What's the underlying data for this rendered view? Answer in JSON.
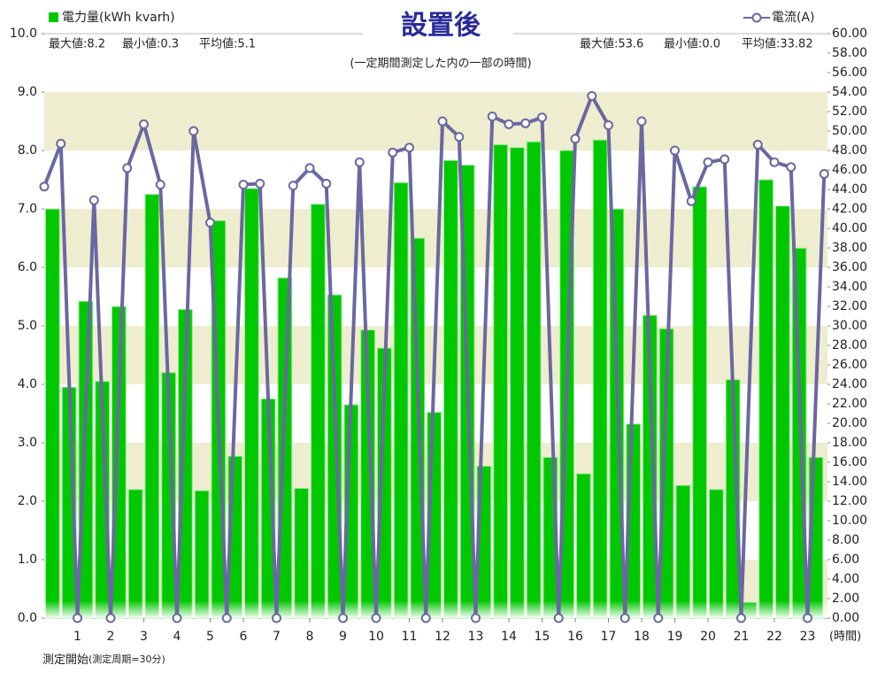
{
  "chart_data": {
    "type": "combo",
    "title": "設置後",
    "subtitle": "(一定期間測定した内の一部の時間)",
    "xlabel": "(時間)",
    "footnote": "測定開始",
    "footnote_small": "(測定周期=30分)",
    "stats_left": [
      "最大値:8.2",
      "最小値:0.3",
      "平均値:5.1"
    ],
    "stats_right": [
      "最大値:53.6",
      "最小値:0.0",
      "平均値:33.82"
    ],
    "xlim": [
      0,
      23.6
    ],
    "xticks": [
      1,
      2,
      3,
      4,
      5,
      6,
      7,
      8,
      9,
      10,
      11,
      12,
      13,
      14,
      15,
      16,
      17,
      18,
      19,
      20,
      21,
      22,
      23
    ],
    "ylim": [
      0,
      10
    ],
    "yticks": [
      {
        "value": 0,
        "label": "0.0"
      },
      {
        "value": 1,
        "label": "1.0"
      },
      {
        "value": 2,
        "label": "2.0"
      },
      {
        "value": 3,
        "label": "3.0"
      },
      {
        "value": 4,
        "label": "4.0"
      },
      {
        "value": 5,
        "label": "5.0"
      },
      {
        "value": 6,
        "label": "6.0"
      },
      {
        "value": 7,
        "label": "7.0"
      },
      {
        "value": 8,
        "label": "8.0"
      },
      {
        "value": 9,
        "label": "9.0"
      },
      {
        "value": 10,
        "label": "10.0"
      }
    ],
    "y2lim": [
      0,
      60
    ],
    "y2ticks": [
      {
        "value": 0,
        "label": "0.00"
      },
      {
        "value": 2,
        "label": "2.00"
      },
      {
        "value": 4,
        "label": "4.00"
      },
      {
        "value": 6,
        "label": "6.00"
      },
      {
        "value": 8,
        "label": "8.00"
      },
      {
        "value": 10,
        "label": "10.00"
      },
      {
        "value": 12,
        "label": "12.00"
      },
      {
        "value": 14,
        "label": "14.00"
      },
      {
        "value": 16,
        "label": "16.00"
      },
      {
        "value": 18,
        "label": "18.00"
      },
      {
        "value": 20,
        "label": "20.00"
      },
      {
        "value": 22,
        "label": "22.00"
      },
      {
        "value": 24,
        "label": "24.00"
      },
      {
        "value": 26,
        "label": "26.00"
      },
      {
        "value": 28,
        "label": "28.00"
      },
      {
        "value": 30,
        "label": "30.00"
      },
      {
        "value": 32,
        "label": "32.00"
      },
      {
        "value": 34,
        "label": "34.00"
      },
      {
        "value": 36,
        "label": "36.00"
      },
      {
        "value": 38,
        "label": "38.00"
      },
      {
        "value": 40,
        "label": "40.00"
      },
      {
        "value": 42,
        "label": "42.00"
      },
      {
        "value": 44,
        "label": "44.00"
      },
      {
        "value": 46,
        "label": "46.00"
      },
      {
        "value": 48,
        "label": "48.00"
      },
      {
        "value": 50,
        "label": "50.00"
      },
      {
        "value": 52,
        "label": "52.00"
      },
      {
        "value": 54,
        "label": "54.00"
      },
      {
        "value": 56,
        "label": "56.00"
      },
      {
        "value": 58,
        "label": "58.00"
      },
      {
        "value": 60,
        "label": "60.00"
      }
    ],
    "bands": true,
    "series": [
      {
        "name": "電力量(kWh kvarh)",
        "type": "bar",
        "color": "#00c800",
        "x": [
          0.25,
          0.75,
          1.25,
          1.75,
          2.25,
          2.75,
          3.25,
          3.75,
          4.25,
          4.75,
          5.25,
          5.75,
          6.25,
          6.75,
          7.25,
          7.75,
          8.25,
          8.75,
          9.25,
          9.75,
          10.25,
          10.75,
          11.25,
          11.75,
          12.25,
          12.75,
          13.25,
          13.75,
          14.25,
          14.75,
          15.25,
          15.75,
          16.25,
          16.75,
          17.25,
          17.75,
          18.25,
          18.75,
          19.25,
          19.75,
          20.25,
          20.75,
          21.25,
          21.75,
          22.25,
          22.75,
          23.25
        ],
        "values": [
          7.0,
          3.95,
          5.42,
          4.05,
          5.33,
          2.2,
          7.25,
          4.2,
          5.28,
          2.18,
          6.8,
          2.77,
          7.35,
          3.75,
          5.82,
          2.22,
          7.08,
          5.53,
          3.65,
          4.93,
          4.62,
          7.45,
          6.5,
          3.52,
          7.83,
          7.75,
          2.6,
          8.1,
          8.05,
          8.15,
          2.75,
          8.0,
          2.47,
          8.18,
          7.0,
          3.32,
          5.18,
          4.95,
          2.27,
          7.38,
          2.2,
          4.08,
          0.27,
          7.5,
          7.05,
          6.33,
          2.75
        ]
      },
      {
        "name": "電流(A)",
        "type": "line",
        "axis": "y2",
        "color": "#6a68a0",
        "x": [
          0,
          0.5,
          1,
          1.5,
          2,
          2.5,
          3,
          3.5,
          4,
          4.5,
          5,
          5.5,
          6,
          6.5,
          7,
          7.5,
          8,
          8.5,
          9,
          9.5,
          10,
          10.5,
          11,
          11.5,
          12,
          12.5,
          13,
          13.5,
          14,
          14.5,
          15,
          15.5,
          16,
          16.5,
          17,
          17.5,
          18,
          18.5,
          19,
          19.5,
          20,
          20.5,
          21,
          21.5,
          22,
          22.5,
          23,
          23.5
        ],
        "values": [
          44.3,
          48.7,
          0,
          42.9,
          0,
          46.2,
          50.7,
          44.5,
          0,
          50.0,
          40.6,
          0,
          44.5,
          44.6,
          0,
          44.4,
          46.2,
          44.6,
          0,
          46.8,
          0,
          47.8,
          48.3,
          0,
          51.0,
          49.4,
          0,
          51.5,
          50.7,
          50.8,
          51.4,
          0,
          49.2,
          53.6,
          50.6,
          0,
          51.0,
          0,
          48.0,
          42.8,
          46.8,
          47.1,
          0,
          48.6,
          46.8,
          46.3,
          0,
          45.6
        ]
      }
    ]
  }
}
